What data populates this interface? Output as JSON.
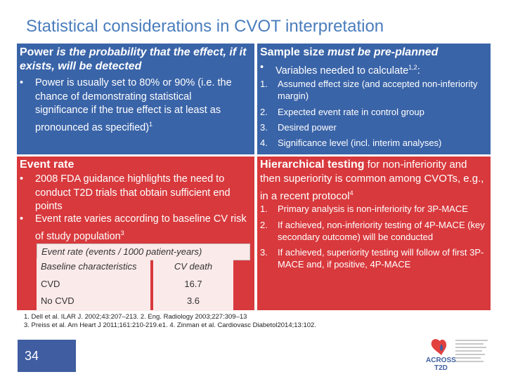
{
  "slide": {
    "title": "Statistical considerations in CVOT interpretation",
    "page_number": "34"
  },
  "power": {
    "head_bold": "Power",
    "head_rest": " is the probability that the effect, if it exists, will be detected",
    "bullet": "Power is usually set to 80% or 90% (i.e. the chance of demonstrating statistical significance if the true effect is at least as pronounced as specified)",
    "bullet_sup": "1"
  },
  "sample_size": {
    "head_bold": "Sample size",
    "head_rest": " must be pre-planned",
    "bullet": "Variables needed to calculate",
    "bullet_sup": "1,2",
    "bullet_end": ":",
    "items": [
      {
        "n": "1.",
        "text": "Assumed effect size (and accepted non-inferiority margin)"
      },
      {
        "n": "2.",
        "text": "Expected event rate in control group"
      },
      {
        "n": "3.",
        "text": "Desired power"
      },
      {
        "n": "4.",
        "text": "Significance level (incl. interim analyses)"
      }
    ]
  },
  "event_rate": {
    "head": "Event rate",
    "bullets": [
      "2008 FDA guidance highlights the need to conduct T2D trials that obtain sufficient end points",
      "Event rate varies according to baseline CV risk of study population"
    ],
    "bullet2_sup": "3",
    "table": {
      "caption": "Event rate (events / 1000 patient-years)",
      "headers": [
        "Baseline characteristics",
        "CV death"
      ],
      "rows": [
        [
          "CVD",
          "16.7"
        ],
        [
          "No CVD",
          "3.6"
        ]
      ]
    }
  },
  "hierarchical": {
    "head_bold": "Hierarchical testing",
    "head_rest": " for non-inferiority and then superiority is common among CVOTs, e.g., in a recent protocol",
    "head_sup": "4",
    "items": [
      {
        "n": "1.",
        "text": "Primary analysis is non-inferiority for 3P-MACE"
      },
      {
        "n": "2.",
        "text": "If achieved, non-inferiority testing of 4P-MACE (key secondary outcome) will be conducted"
      },
      {
        "n": "3.",
        "text": "If achieved, superiority testing will follow of first 3P-MACE and, if positive, 4P-MACE"
      }
    ]
  },
  "references": {
    "line1": "1. Dell et al. ILAR J. 2002;43:207–213. 2. Eng. Radiology 2003;227:309–13",
    "line2": "3. Preiss et al. Am Heart J 2011;161:210-219.e1. 4. Zinman et al. Cardiovasc Diabetol2014;13:102."
  },
  "logo": {
    "wordmark_1": "ACROSS",
    "wordmark_2": "T2D",
    "icon": "heart-drop-logo-icon"
  }
}
